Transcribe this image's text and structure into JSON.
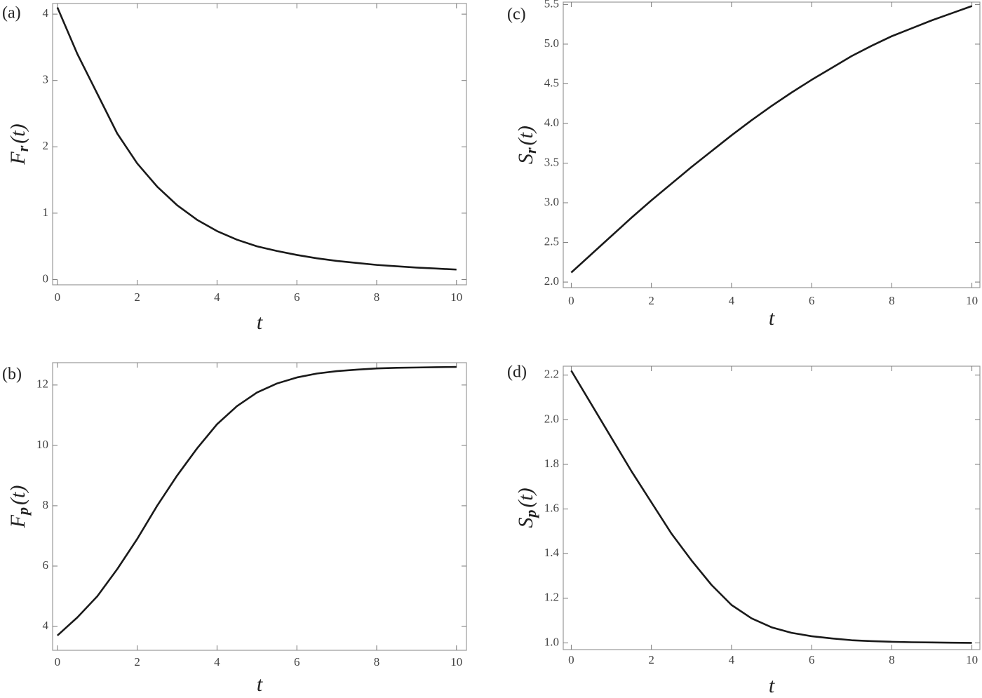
{
  "chart_data": [
    {
      "type": "line",
      "panel_label": "(a)",
      "ylabel": {
        "main": "F",
        "sub": "r",
        "args": "(t)"
      },
      "xlabel": "t",
      "x": [
        0,
        0.5,
        1,
        1.5,
        2,
        2.5,
        3,
        3.5,
        4,
        4.5,
        5,
        5.5,
        6,
        6.5,
        7,
        7.5,
        8,
        8.5,
        9,
        9.5,
        10
      ],
      "values": [
        4.1,
        3.4,
        2.8,
        2.2,
        1.75,
        1.4,
        1.12,
        0.9,
        0.73,
        0.6,
        0.5,
        0.43,
        0.37,
        0.32,
        0.28,
        0.25,
        0.22,
        0.2,
        0.18,
        0.165,
        0.15
      ],
      "color": "#1a1a1a",
      "xlim": [
        -0.12,
        10.25
      ],
      "ylim": [
        -0.08,
        4.16
      ],
      "xticks": [
        0,
        2,
        4,
        6,
        8,
        10
      ],
      "yticks": [
        0,
        1,
        2,
        3,
        4
      ],
      "grid": false
    },
    {
      "type": "line",
      "panel_label": "(b)",
      "ylabel": {
        "main": "F",
        "sub": "p",
        "args": "(t)"
      },
      "xlabel": "t",
      "x": [
        0,
        0.5,
        1,
        1.5,
        2,
        2.5,
        3,
        3.5,
        4,
        4.5,
        5,
        5.5,
        6,
        6.5,
        7,
        7.5,
        8,
        8.5,
        9,
        9.5,
        10
      ],
      "values": [
        3.7,
        4.3,
        5.0,
        5.9,
        6.9,
        8.0,
        9.0,
        9.9,
        10.7,
        11.3,
        11.75,
        12.05,
        12.25,
        12.38,
        12.46,
        12.51,
        12.55,
        12.57,
        12.58,
        12.59,
        12.6
      ],
      "color": "#1a1a1a",
      "xlim": [
        -0.12,
        10.25
      ],
      "ylim": [
        3.21,
        12.74
      ],
      "xticks": [
        0,
        2,
        4,
        6,
        8,
        10
      ],
      "yticks": [
        4,
        6,
        8,
        10,
        12
      ],
      "grid": false
    },
    {
      "type": "line",
      "panel_label": "(c)",
      "ylabel": {
        "main": "S",
        "sub": "r",
        "args": "(t)"
      },
      "xlabel": "t",
      "x": [
        0,
        0.5,
        1,
        1.5,
        2,
        2.5,
        3,
        3.5,
        4,
        4.5,
        5,
        5.5,
        6,
        6.5,
        7,
        7.5,
        8,
        8.5,
        9,
        9.5,
        10
      ],
      "values": [
        2.12,
        2.35,
        2.58,
        2.81,
        3.03,
        3.24,
        3.45,
        3.65,
        3.85,
        4.04,
        4.22,
        4.39,
        4.55,
        4.7,
        4.85,
        4.98,
        5.1,
        5.2,
        5.3,
        5.39,
        5.48
      ],
      "color": "#1a1a1a",
      "xlim": [
        -0.2,
        10.2
      ],
      "ylim": [
        1.93,
        5.53
      ],
      "xticks": [
        0,
        2,
        4,
        6,
        8,
        10
      ],
      "yticks": [
        {
          "value": 2,
          "label": "2.0"
        },
        2.5,
        {
          "value": 3,
          "label": "3.0"
        },
        3.5,
        {
          "value": 4,
          "label": "4.0"
        },
        4.5,
        {
          "value": 5,
          "label": "5.0"
        },
        5.5
      ],
      "grid": false
    },
    {
      "type": "line",
      "panel_label": "(d)",
      "ylabel": {
        "main": "S",
        "sub": "p",
        "args": "(t)"
      },
      "xlabel": "t",
      "x": [
        0,
        0.5,
        1,
        1.5,
        2,
        2.5,
        3,
        3.5,
        4,
        4.5,
        5,
        5.5,
        6,
        6.5,
        7,
        7.5,
        8,
        8.5,
        9,
        9.5,
        10
      ],
      "values": [
        2.22,
        2.07,
        1.92,
        1.77,
        1.63,
        1.49,
        1.37,
        1.26,
        1.17,
        1.11,
        1.07,
        1.045,
        1.03,
        1.02,
        1.012,
        1.008,
        1.005,
        1.003,
        1.002,
        1.001,
        1.0
      ],
      "color": "#1a1a1a",
      "xlim": [
        -0.2,
        10.2
      ],
      "ylim": [
        0.97,
        2.24
      ],
      "xticks": [
        0,
        2,
        4,
        6,
        8,
        10
      ],
      "yticks": [
        {
          "value": 1,
          "label": "1.0"
        },
        1.2,
        1.4,
        1.6,
        1.8,
        {
          "value": 2,
          "label": "2.0"
        },
        2.2
      ],
      "grid": false
    }
  ]
}
